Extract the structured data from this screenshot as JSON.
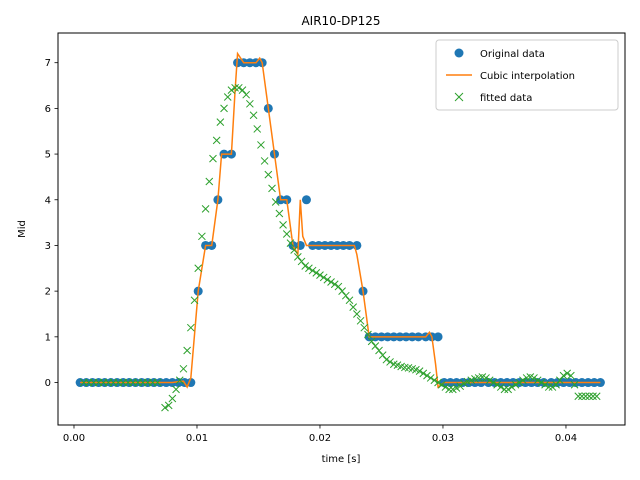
{
  "chart_data": {
    "type": "line",
    "title": "AIR10-DP125",
    "xlabel": "time [s]",
    "ylabel": "Mid",
    "xlim": [
      -0.0013,
      0.0448
    ],
    "ylim": [
      -0.93,
      7.65
    ],
    "xticks": [
      0.0,
      0.01,
      0.02,
      0.03,
      0.04
    ],
    "xtick_labels": [
      "0.00",
      "0.01",
      "0.02",
      "0.03",
      "0.04"
    ],
    "yticks": [
      0,
      1,
      2,
      3,
      4,
      5,
      6,
      7
    ],
    "ytick_labels": [
      "0",
      "1",
      "2",
      "3",
      "4",
      "5",
      "6",
      "7"
    ],
    "grid": false,
    "legend_position": "top-right",
    "colors": {
      "original": "#1f77b4",
      "cubic": "#ff7f0e",
      "fitted": "#2ca02c"
    },
    "legend": [
      "Original data",
      "Cubic interpolation",
      "fitted data"
    ],
    "series": [
      {
        "name": "Original data",
        "marker": "circle",
        "x": [
          0.0005,
          0.001,
          0.0015,
          0.002,
          0.0025,
          0.003,
          0.0035,
          0.004,
          0.0045,
          0.005,
          0.0055,
          0.006,
          0.0065,
          0.007,
          0.0075,
          0.008,
          0.0085,
          0.009,
          0.0095,
          0.0101,
          0.0107,
          0.0112,
          0.0117,
          0.0122,
          0.0128,
          0.0133,
          0.0138,
          0.0143,
          0.0148,
          0.0153,
          0.0158,
          0.0163,
          0.0168,
          0.0173,
          0.0178,
          0.0184,
          0.0189,
          0.0194,
          0.0199,
          0.0204,
          0.0209,
          0.0214,
          0.0219,
          0.0224,
          0.023,
          0.0235,
          0.024,
          0.0245,
          0.025,
          0.0255,
          0.026,
          0.0265,
          0.027,
          0.0275,
          0.028,
          0.0286,
          0.0291,
          0.0296,
          0.0301,
          0.0306,
          0.0311,
          0.0316,
          0.0321,
          0.0326,
          0.0331,
          0.0337,
          0.0342,
          0.0347,
          0.0352,
          0.0357,
          0.0362,
          0.0367,
          0.0372,
          0.0377,
          0.0382,
          0.0388,
          0.0393,
          0.0398,
          0.0403,
          0.0408,
          0.0413,
          0.0418,
          0.0423,
          0.0428
        ],
        "y": [
          0,
          0,
          0,
          0,
          0,
          0,
          0,
          0,
          0,
          0,
          0,
          0,
          0,
          0,
          0,
          0,
          0,
          0,
          0,
          2,
          3,
          3,
          4,
          5,
          5,
          7,
          7,
          7,
          7,
          7,
          6,
          5,
          4,
          4,
          3,
          3,
          4,
          3,
          3,
          3,
          3,
          3,
          3,
          3,
          3,
          2,
          1,
          1,
          1,
          1,
          1,
          1,
          1,
          1,
          1,
          1,
          1,
          1,
          0,
          0,
          0,
          0,
          0,
          0,
          0,
          0,
          0,
          0,
          0,
          0,
          0,
          0,
          0,
          0,
          0,
          0,
          0,
          0,
          0,
          0,
          0,
          0,
          0,
          0
        ]
      },
      {
        "name": "Cubic interpolation",
        "marker": "line",
        "x": [
          0.0005,
          0.001,
          0.0015,
          0.002,
          0.0025,
          0.003,
          0.0035,
          0.004,
          0.0045,
          0.005,
          0.0055,
          0.006,
          0.0065,
          0.007,
          0.0075,
          0.008,
          0.0085,
          0.0089,
          0.0092,
          0.0095,
          0.0101,
          0.0107,
          0.0112,
          0.0117,
          0.012,
          0.0122,
          0.0128,
          0.0131,
          0.0133,
          0.0138,
          0.0143,
          0.0148,
          0.0151,
          0.0153,
          0.0158,
          0.0163,
          0.0168,
          0.0173,
          0.0178,
          0.018,
          0.0182,
          0.0184,
          0.0186,
          0.0189,
          0.0194,
          0.0199,
          0.0204,
          0.0209,
          0.0214,
          0.0219,
          0.0224,
          0.0228,
          0.023,
          0.0235,
          0.024,
          0.0245,
          0.025,
          0.0255,
          0.026,
          0.0265,
          0.027,
          0.0275,
          0.028,
          0.0286,
          0.0289,
          0.0291,
          0.0294,
          0.0296,
          0.0301,
          0.0306,
          0.0311,
          0.0316,
          0.0321,
          0.0326,
          0.0331,
          0.0337,
          0.0342,
          0.0347,
          0.0352,
          0.0357,
          0.0362,
          0.0367,
          0.0372,
          0.0377,
          0.0382,
          0.0388,
          0.0393,
          0.0398,
          0.0403,
          0.0408,
          0.0413,
          0.0418,
          0.0423,
          0.0428
        ],
        "y": [
          0,
          0,
          0,
          0,
          0,
          0,
          0,
          0,
          0,
          0,
          0,
          0,
          0,
          0,
          0,
          0,
          0.02,
          0.03,
          -0.1,
          0.1,
          2,
          3,
          3,
          4,
          5,
          5,
          5,
          6.4,
          7.2,
          7,
          7,
          7,
          7.1,
          7,
          6,
          5,
          4,
          4,
          3,
          2.9,
          2.8,
          4,
          3.2,
          3,
          3,
          3,
          3,
          3,
          3,
          3,
          3,
          3,
          2.8,
          2,
          1,
          1,
          1,
          1,
          1,
          1,
          1,
          1,
          1,
          1,
          1.1,
          1,
          0.4,
          -0.1,
          0,
          0,
          0,
          0,
          0,
          0,
          0,
          0,
          0,
          0,
          0,
          0,
          0,
          0,
          0,
          0,
          0,
          0,
          0,
          0,
          0,
          0,
          0,
          0,
          0,
          0
        ]
      },
      {
        "name": "fitted data",
        "marker": "x",
        "x": [
          0.0008,
          0.0012,
          0.0016,
          0.002,
          0.0024,
          0.0028,
          0.0032,
          0.0036,
          0.004,
          0.0044,
          0.0048,
          0.0052,
          0.0056,
          0.006,
          0.0064,
          0.0068,
          0.0074,
          0.0077,
          0.008,
          0.0083,
          0.0086,
          0.0089,
          0.0092,
          0.0095,
          0.0098,
          0.0101,
          0.0104,
          0.0107,
          0.011,
          0.0113,
          0.0116,
          0.0119,
          0.0122,
          0.0125,
          0.0128,
          0.0131,
          0.0134,
          0.0137,
          0.014,
          0.0143,
          0.0146,
          0.0149,
          0.0152,
          0.0155,
          0.0158,
          0.0161,
          0.0164,
          0.0167,
          0.017,
          0.0173,
          0.0176,
          0.0179,
          0.0182,
          0.0185,
          0.0188,
          0.0191,
          0.0194,
          0.0197,
          0.02,
          0.0203,
          0.0206,
          0.0209,
          0.0212,
          0.0215,
          0.0218,
          0.0221,
          0.0224,
          0.0227,
          0.023,
          0.0233,
          0.0236,
          0.0239,
          0.0242,
          0.0245,
          0.0248,
          0.0251,
          0.0254,
          0.0257,
          0.026,
          0.0263,
          0.0266,
          0.0269,
          0.0272,
          0.0275,
          0.0278,
          0.0281,
          0.0284,
          0.0287,
          0.029,
          0.0293,
          0.0296,
          0.0299,
          0.0302,
          0.0305,
          0.0308,
          0.0311,
          0.0314,
          0.0317,
          0.032,
          0.0323,
          0.0326,
          0.0329,
          0.0332,
          0.0335,
          0.0338,
          0.0341,
          0.0344,
          0.0347,
          0.035,
          0.0353,
          0.0356,
          0.0359,
          0.0362,
          0.0365,
          0.0368,
          0.0371,
          0.0374,
          0.0377,
          0.038,
          0.0383,
          0.0386,
          0.0389,
          0.0392,
          0.0395,
          0.0398,
          0.0401,
          0.0404,
          0.0407,
          0.041,
          0.0413,
          0.0416,
          0.0419,
          0.0422,
          0.0425
        ],
        "y": [
          0,
          0,
          0,
          0,
          0,
          0,
          0,
          0,
          0,
          0,
          0,
          0,
          0,
          0,
          0,
          0,
          -0.55,
          -0.5,
          -0.35,
          -0.15,
          0.05,
          0.3,
          0.7,
          1.2,
          1.8,
          2.5,
          3.2,
          3.8,
          4.4,
          4.9,
          5.3,
          5.7,
          6.0,
          6.25,
          6.4,
          6.45,
          6.45,
          6.4,
          6.3,
          6.1,
          5.85,
          5.55,
          5.2,
          4.85,
          4.55,
          4.25,
          3.95,
          3.7,
          3.45,
          3.25,
          3.05,
          2.9,
          2.75,
          2.65,
          2.55,
          2.5,
          2.45,
          2.4,
          2.35,
          2.3,
          2.25,
          2.2,
          2.15,
          2.1,
          2.0,
          1.9,
          1.8,
          1.65,
          1.5,
          1.35,
          1.2,
          1.05,
          0.9,
          0.8,
          0.7,
          0.6,
          0.5,
          0.45,
          0.4,
          0.38,
          0.35,
          0.33,
          0.32,
          0.3,
          0.28,
          0.25,
          0.2,
          0.15,
          0.1,
          0.05,
          0.0,
          -0.05,
          -0.1,
          -0.15,
          -0.15,
          -0.12,
          -0.08,
          -0.02,
          0.02,
          0.05,
          0.08,
          0.1,
          0.12,
          0.1,
          0.05,
          0.0,
          -0.05,
          -0.1,
          -0.15,
          -0.15,
          -0.1,
          -0.05,
          0.0,
          0.05,
          0.1,
          0.12,
          0.1,
          0.05,
          0.0,
          -0.05,
          -0.1,
          -0.1,
          -0.05,
          0.05,
          0.15,
          0.2,
          0.15,
          -0.05,
          -0.3,
          -0.3,
          -0.3,
          -0.3,
          -0.3,
          -0.3
        ]
      }
    ]
  }
}
